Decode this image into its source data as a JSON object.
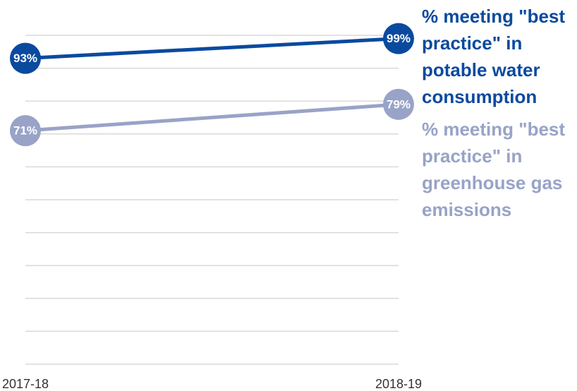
{
  "chart_data": {
    "type": "line",
    "x": [
      "2017-18",
      "2018-19"
    ],
    "series": [
      {
        "name": "% meeting \"best practice\" in potable water consumption",
        "color": "#0a4a9e",
        "values": [
          93,
          99
        ],
        "value_labels": [
          "93%",
          "99%"
        ]
      },
      {
        "name": "% meeting \"best practice\" in greenhouse gas emissions",
        "color": "#98a3c7",
        "values": [
          71,
          79
        ],
        "value_labels": [
          "71%",
          "79%"
        ]
      }
    ],
    "ylim": [
      0,
      100
    ],
    "yticks": [
      0,
      10,
      20,
      30,
      40,
      50,
      60,
      70,
      80,
      90,
      100
    ],
    "grid": true
  }
}
